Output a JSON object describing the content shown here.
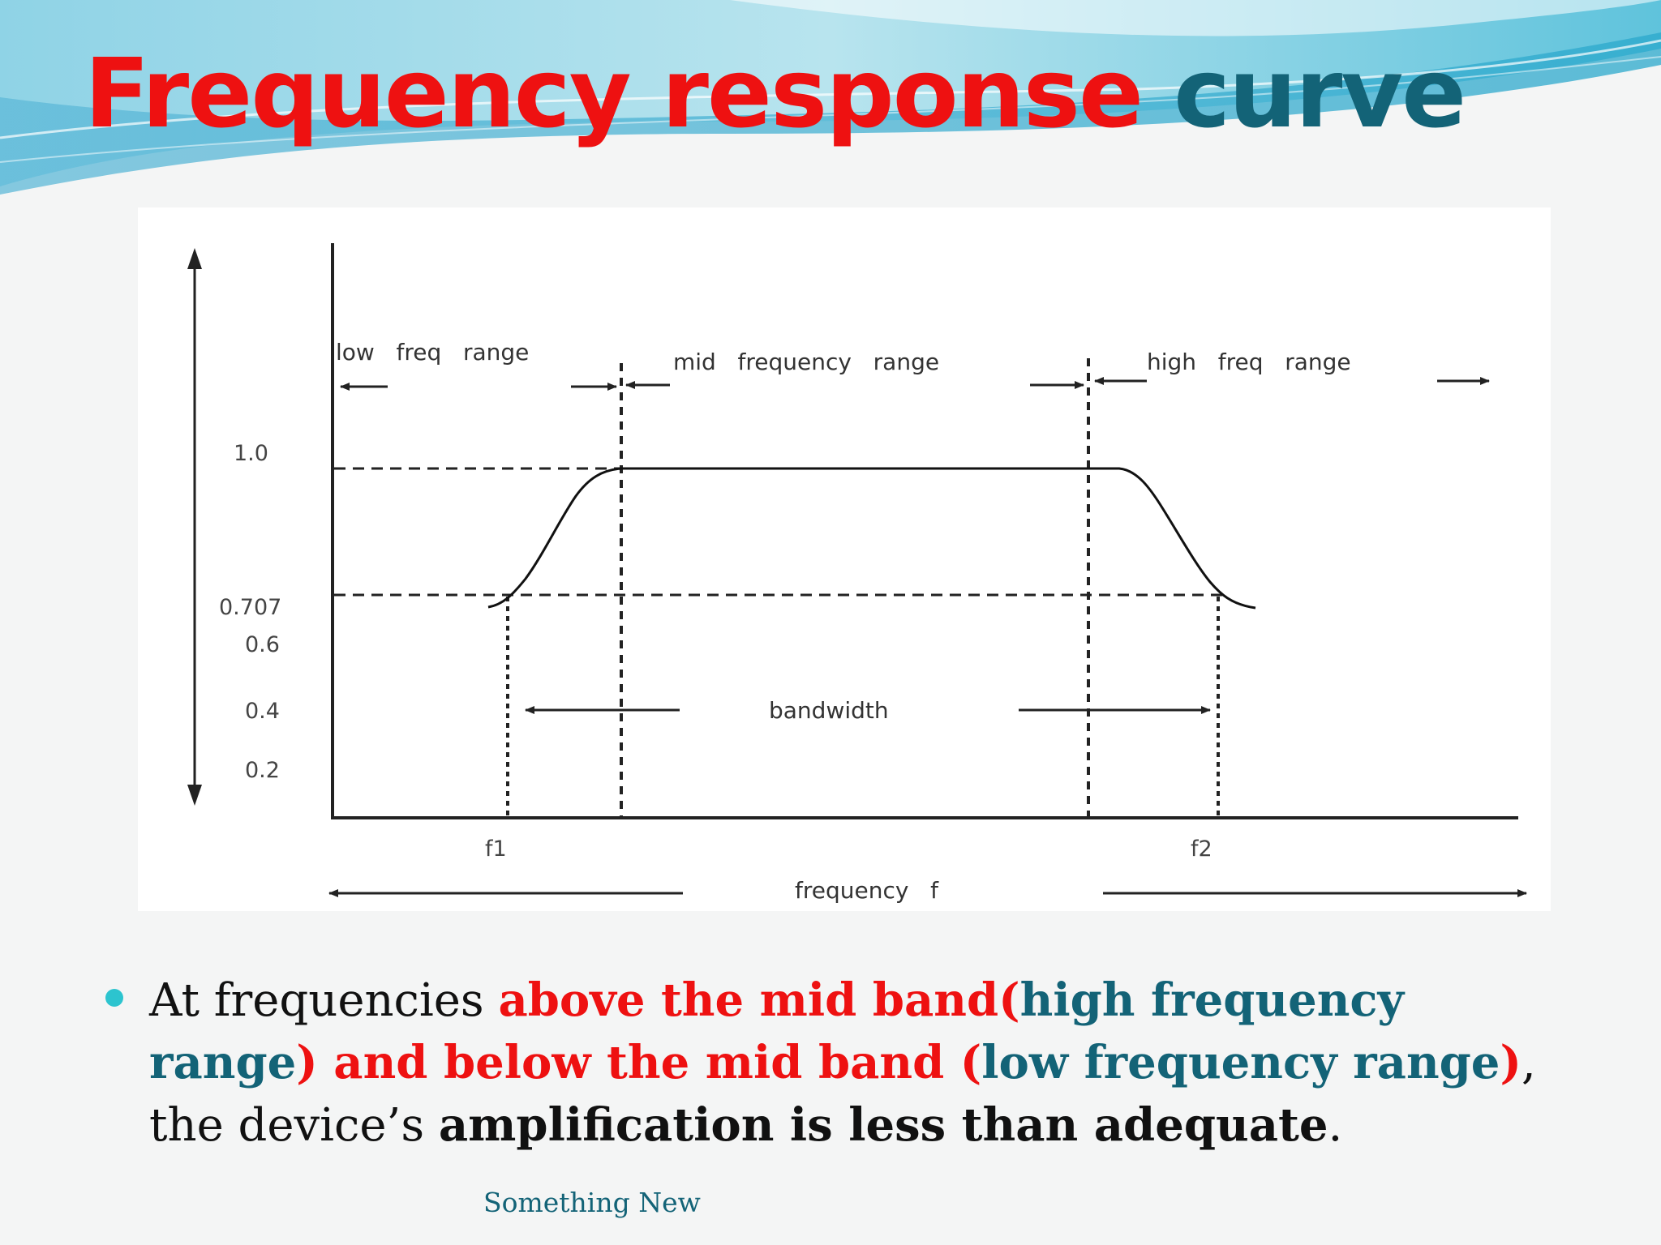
{
  "slide": {
    "title_red": "Frequency response",
    "title_teal": "curve",
    "footer": "Something New"
  },
  "diagram": {
    "labels": {
      "low_range": "low   freq   range",
      "mid_range": "mid   frequency   range",
      "high_range": "high   freq   range",
      "bandwidth": "bandwidth",
      "frequency": "frequency   f",
      "f1": "f1",
      "f2": "f2"
    },
    "y_ticks": [
      "1.0",
      "0.707",
      "0.6",
      "0.4",
      "0.2"
    ]
  },
  "bullet": {
    "p1": "At frequencies ",
    "p2": "above  the mid band(",
    "p3": "high frequency range",
    "p4": ") and below the mid band (",
    "p5": "low frequency range",
    "p6": ")",
    "p7": ", the device’s ",
    "p8": "amplification is less than adequate",
    "p9": "."
  },
  "colors": {
    "accent_red": "#ee1111",
    "accent_teal": "#136377",
    "bullet_cyan": "#2cc4cf"
  }
}
